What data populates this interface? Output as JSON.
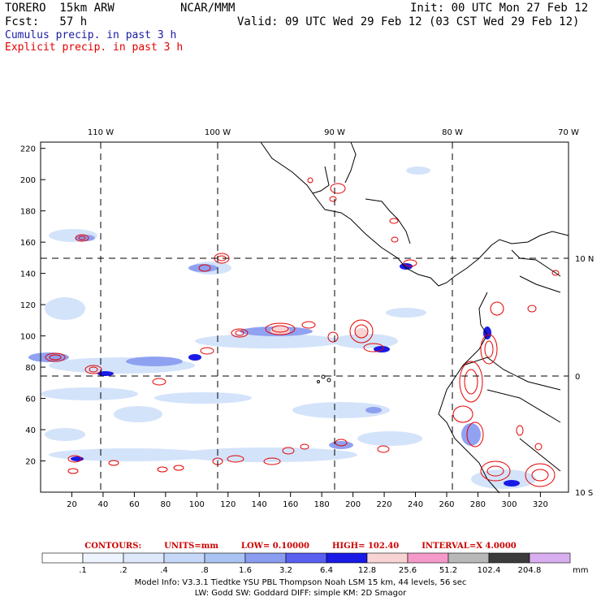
{
  "header": {
    "model": "TORERO  15km ARW",
    "org": "NCAR/MMM",
    "init": "Init: 00 UTC Mon 27 Feb 12",
    "fcst": "Fcst:   57 h",
    "valid": "Valid: 09 UTC Wed 29 Feb 12 (03 CST Wed 29 Feb 12)"
  },
  "legend": {
    "cumulus": "Cumulus precip. in past 3 h",
    "explicit": "Explicit precip. in past 3 h",
    "cumulus_color": "#1a1aa6",
    "explicit_color": "#e60000"
  },
  "map": {
    "lon_labels": [
      "110 W",
      "100 W",
      "90 W",
      "80 W",
      "70 W"
    ],
    "lat_labels": [
      "10 N",
      "0",
      "10 S"
    ],
    "x_ticks": [
      "20",
      "40",
      "60",
      "80",
      "100",
      "120",
      "140",
      "160",
      "180",
      "200",
      "220",
      "240",
      "260",
      "280",
      "300",
      "320"
    ],
    "y_ticks": [
      "20",
      "40",
      "60",
      "80",
      "100",
      "120",
      "140",
      "160",
      "180",
      "200",
      "220"
    ]
  },
  "contours": {
    "title": "CONTOURS:",
    "units": "UNITS=mm",
    "low": "LOW= 0.10000",
    "high": "HIGH=  102.40",
    "interval": "INTERVAL=X  4.0000"
  },
  "colorbar": {
    "labels": [
      ".1",
      ".2",
      ".4",
      ".8",
      "1.6",
      "3.2",
      "6.4",
      "12.8",
      "25.6",
      "51.2",
      "102.4",
      "204.8"
    ],
    "units": "mm",
    "colors": [
      "#ffffff",
      "#eef4ff",
      "#dde8fb",
      "#c6d8f7",
      "#a9c3f2",
      "#8a9df0",
      "#5a5ff0",
      "#1a1ae6",
      "#f7d3d3",
      "#f59ac8",
      "#b8b8b8",
      "#3c3c3c",
      "#d8aef0"
    ]
  },
  "info": {
    "line1": "Model Info: V3.3.1    Tiedtke YSU PBL  Thompson     Noah LSM  15 km,   44 levels,   56 sec",
    "line2": "LW: Godd SW: Goddard DIFF: simple KM: 2D Smagor"
  }
}
